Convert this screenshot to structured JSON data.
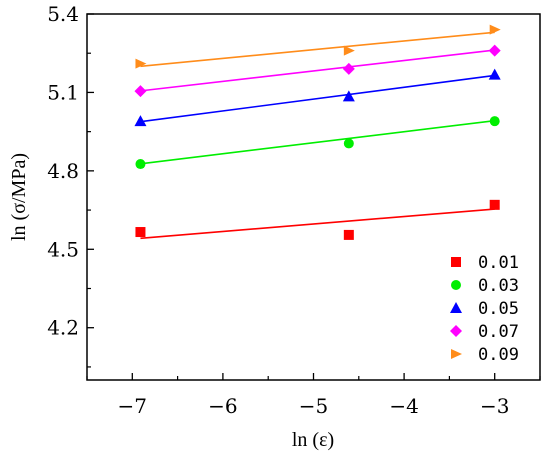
{
  "chart_data": {
    "type": "scatter",
    "xlabel": "ln (ε)",
    "ylabel": "ln (σ/MPa)",
    "xlim": [
      -7.5,
      -2.5
    ],
    "ylim": [
      4.0,
      5.4
    ],
    "x_ticks": [
      -7,
      -6,
      -5,
      -4,
      -3
    ],
    "x_tick_labels": [
      "−7",
      "−6",
      "−5",
      "−4",
      "−3"
    ],
    "y_ticks": [
      4.2,
      4.5,
      4.8,
      5.1,
      5.4
    ],
    "y_tick_labels": [
      "4.2",
      "4.5",
      "4.8",
      "5.1",
      "5.4"
    ],
    "grid": false,
    "legend_position": "bottom-right",
    "series": [
      {
        "name": "0.01",
        "color": "#ff0000",
        "marker": "square",
        "x": [
          -6.91,
          -4.61,
          -3.0
        ],
        "y": [
          4.566,
          4.555,
          4.67
        ],
        "fit": [
          [
            -6.91,
            4.542
          ],
          [
            -3.0,
            4.654
          ]
        ]
      },
      {
        "name": "0.03",
        "color": "#00ee00",
        "marker": "circle",
        "x": [
          -6.91,
          -4.61,
          -3.0
        ],
        "y": [
          4.826,
          4.905,
          4.99
        ],
        "fit": [
          [
            -6.91,
            4.827
          ],
          [
            -3.0,
            4.992
          ]
        ]
      },
      {
        "name": "0.05",
        "color": "#0000ff",
        "marker": "triangle",
        "x": [
          -6.91,
          -4.61,
          -3.0
        ],
        "y": [
          4.99,
          5.085,
          5.168
        ],
        "fit": [
          [
            -6.91,
            4.988
          ],
          [
            -3.0,
            5.165
          ]
        ]
      },
      {
        "name": "0.07",
        "color": "#ff00ff",
        "marker": "diamond",
        "x": [
          -6.91,
          -4.61,
          -3.0
        ],
        "y": [
          5.105,
          5.19,
          5.26
        ],
        "fit": [
          [
            -6.91,
            5.106
          ],
          [
            -3.0,
            5.262
          ]
        ]
      },
      {
        "name": "0.09",
        "color": "#ff8c1a",
        "marker": "triangle-right",
        "x": [
          -6.91,
          -4.61,
          -3.0
        ],
        "y": [
          5.21,
          5.26,
          5.34
        ],
        "fit": [
          [
            -6.91,
            5.2
          ],
          [
            -3.0,
            5.33
          ]
        ]
      }
    ]
  }
}
